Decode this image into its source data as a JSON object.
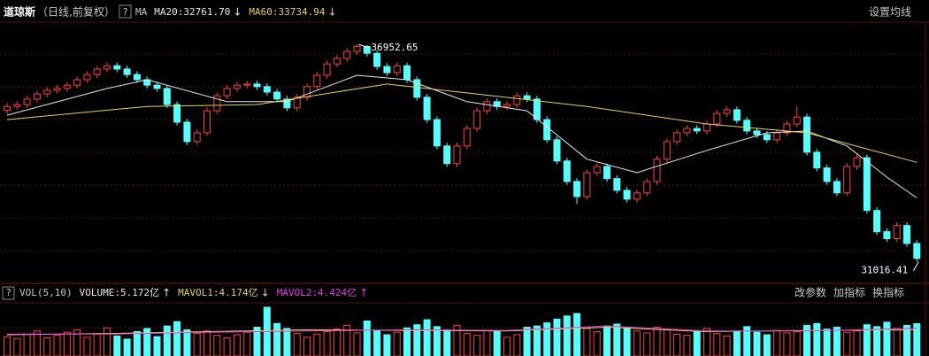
{
  "chart_data": [
    {
      "type": "candlestick",
      "title": "道琼斯",
      "subtitle": "（日线,前复权）",
      "help": "?",
      "indicator": "MA",
      "settings_button": "设置均线",
      "up_color": "#ff4040",
      "down_color": "#54ffff",
      "ylim": [
        30720,
        37560
      ],
      "open": [
        35150,
        35260,
        35310,
        35460,
        35600,
        35700,
        35750,
        35840,
        35990,
        36130,
        36280,
        36370,
        36280,
        36130,
        35990,
        35840,
        35750,
        35310,
        34830,
        34300,
        34540,
        35140,
        35550,
        35750,
        35840,
        35870,
        35800,
        35650,
        35460,
        35220,
        35510,
        35800,
        36110,
        36420,
        36570,
        36760,
        36900,
        36710,
        36350,
        36180,
        36370,
        35990,
        35510,
        34900,
        34180,
        33700,
        34180,
        34660,
        35140,
        35390,
        35260,
        35310,
        35550,
        35460,
        34900,
        34350,
        33770,
        33210,
        32800,
        33450,
        33620,
        33290,
        32970,
        32730,
        32900,
        33210,
        33820,
        34300,
        34540,
        34660,
        34590,
        34780,
        35070,
        35170,
        34880,
        34590,
        34490,
        34350,
        34540,
        34780,
        34970,
        34010,
        33580,
        33210,
        32900,
        33620,
        33860,
        32420,
        31840,
        31650,
        32010,
        31520
      ],
      "high": [
        35350,
        35400,
        35550,
        35690,
        35790,
        35840,
        35930,
        36080,
        36220,
        36370,
        36460,
        36460,
        36370,
        36220,
        36080,
        35930,
        35840,
        35400,
        34920,
        34630,
        35230,
        35640,
        35840,
        35930,
        35960,
        35960,
        35890,
        35740,
        35550,
        35600,
        35890,
        36200,
        36510,
        36660,
        36850,
        36952.65,
        36930,
        36800,
        36440,
        36460,
        36460,
        36080,
        35600,
        34990,
        34270,
        34270,
        34750,
        35230,
        35480,
        35480,
        35400,
        35640,
        35640,
        35550,
        34990,
        34440,
        33860,
        33300,
        33540,
        33710,
        33710,
        33380,
        33060,
        32990,
        33300,
        33910,
        34390,
        34630,
        34750,
        34750,
        34870,
        35160,
        35260,
        35260,
        34970,
        34680,
        34580,
        34630,
        34870,
        35260,
        35060,
        34100,
        33670,
        33300,
        33710,
        33950,
        33950,
        32510,
        31930,
        32100,
        32100,
        31610
      ],
      "low": [
        35060,
        35170,
        35220,
        35370,
        35510,
        35610,
        35660,
        35750,
        35900,
        36040,
        36190,
        36190,
        36040,
        35900,
        35750,
        35660,
        35220,
        34740,
        34210,
        34210,
        34450,
        35050,
        35460,
        35660,
        35750,
        35710,
        35560,
        35370,
        35130,
        35130,
        35420,
        35710,
        36020,
        36330,
        36480,
        36670,
        36620,
        36260,
        36090,
        36090,
        35900,
        35420,
        34810,
        34090,
        33610,
        33610,
        34090,
        34570,
        35050,
        35170,
        35170,
        35220,
        35370,
        34810,
        34260,
        33680,
        33120,
        32600,
        32710,
        33360,
        33200,
        32880,
        32640,
        32640,
        32810,
        33120,
        33730,
        34210,
        34450,
        34500,
        34500,
        34690,
        34980,
        34790,
        34500,
        34400,
        34260,
        34260,
        34450,
        34690,
        33920,
        33490,
        33120,
        32810,
        32810,
        33530,
        32330,
        31750,
        31560,
        31560,
        31430,
        31016.41
      ],
      "close": [
        35260,
        35310,
        35460,
        35600,
        35700,
        35750,
        35840,
        35990,
        36130,
        36280,
        36370,
        36280,
        36130,
        35990,
        35840,
        35750,
        35310,
        34830,
        34300,
        34540,
        35140,
        35550,
        35750,
        35840,
        35870,
        35800,
        35650,
        35460,
        35220,
        35510,
        35800,
        36110,
        36420,
        36570,
        36760,
        36900,
        36710,
        36350,
        36180,
        36370,
        35990,
        35510,
        34900,
        34180,
        33700,
        34180,
        34660,
        35140,
        35390,
        35260,
        35310,
        35550,
        35460,
        34900,
        34350,
        33770,
        33210,
        32800,
        33450,
        33620,
        33290,
        32970,
        32730,
        32900,
        33210,
        33820,
        34300,
        34540,
        34660,
        34590,
        34780,
        35070,
        35170,
        34880,
        34590,
        34490,
        34350,
        34540,
        34780,
        34970,
        34010,
        33580,
        33210,
        32900,
        33620,
        33860,
        32420,
        31840,
        31650,
        32010,
        31520,
        31110
      ],
      "series": [
        {
          "name": "MA20:32761.70",
          "arrow": "↓",
          "color": "#e8e8e8",
          "x": [
            0,
            10,
            14,
            22,
            28,
            35,
            40,
            46,
            52,
            58,
            63,
            70,
            76,
            80,
            84,
            88,
            91
          ],
          "values": [
            35020,
            35750,
            35990,
            35390,
            35390,
            36110,
            35990,
            35390,
            35140,
            33820,
            33450,
            34060,
            34540,
            34590,
            34180,
            33330,
            32761.7
          ]
        },
        {
          "name": "MA60:33734.94",
          "arrow": "↓",
          "color": "#e6d25a",
          "x": [
            0,
            14,
            25,
            38,
            46,
            58,
            70,
            80,
            91
          ],
          "values": [
            34900,
            35260,
            35310,
            35870,
            35630,
            35260,
            34780,
            34540,
            33734.94
          ]
        }
      ],
      "annotations": [
        {
          "label": "36952.65",
          "value": 36952.65,
          "x": 35
        },
        {
          "label": "31016.41",
          "value": 31016.41,
          "x": 91
        }
      ]
    },
    {
      "type": "bar",
      "title": "VOL(5,10)",
      "help": "?",
      "buttons": [
        "改参数",
        "加指标",
        "换指标"
      ],
      "ylim": [
        0,
        8.5
      ],
      "series": [
        {
          "name": "VOLUME:5.172亿",
          "arrow": "↑",
          "color": "#e8e8e8",
          "values": [
            3.1,
            2.8,
            3.5,
            4.0,
            2.9,
            3.3,
            3.8,
            4.2,
            3.0,
            3.6,
            4.5,
            3.2,
            2.7,
            3.9,
            4.4,
            3.1,
            4.8,
            5.5,
            4.2,
            3.6,
            4.0,
            3.3,
            2.9,
            3.4,
            3.8,
            4.6,
            7.8,
            5.2,
            4.4,
            3.6,
            3.0,
            3.5,
            3.9,
            4.3,
            4.9,
            3.7,
            5.6,
            4.1,
            3.4,
            3.8,
            4.5,
            5.0,
            5.8,
            4.7,
            4.2,
            4.9,
            3.6,
            3.3,
            4.1,
            3.9,
            3.0,
            3.4,
            4.6,
            4.8,
            5.3,
            5.9,
            6.4,
            6.8,
            4.4,
            3.9,
            4.8,
            5.1,
            4.5,
            4.0,
            3.7,
            4.6,
            4.2,
            3.5,
            3.3,
            3.9,
            4.4,
            3.6,
            3.2,
            4.0,
            4.7,
            3.8,
            3.4,
            4.1,
            3.7,
            3.9,
            4.9,
            5.2,
            4.3,
            4.6,
            3.8,
            4.0,
            5.0,
            4.7,
            5.4,
            4.4,
            4.9,
            5.172
          ]
        },
        {
          "name": "MAVOL1:4.174亿",
          "arrow": "↓",
          "color": "#e6d25a",
          "x": [
            0,
            10,
            20,
            30,
            40,
            50,
            60,
            70,
            80,
            91
          ],
          "values": [
            3.4,
            3.6,
            3.9,
            4.2,
            4.1,
            4.0,
            4.6,
            3.9,
            4.1,
            4.174
          ]
        },
        {
          "name": "MAVOL2:4.424亿",
          "arrow": "↑",
          "color": "#e040e0",
          "x": [
            0,
            10,
            20,
            30,
            40,
            50,
            60,
            70,
            80,
            91
          ],
          "values": [
            3.5,
            3.5,
            3.8,
            4.0,
            4.2,
            4.1,
            4.8,
            4.0,
            4.0,
            4.424
          ]
        }
      ]
    }
  ]
}
